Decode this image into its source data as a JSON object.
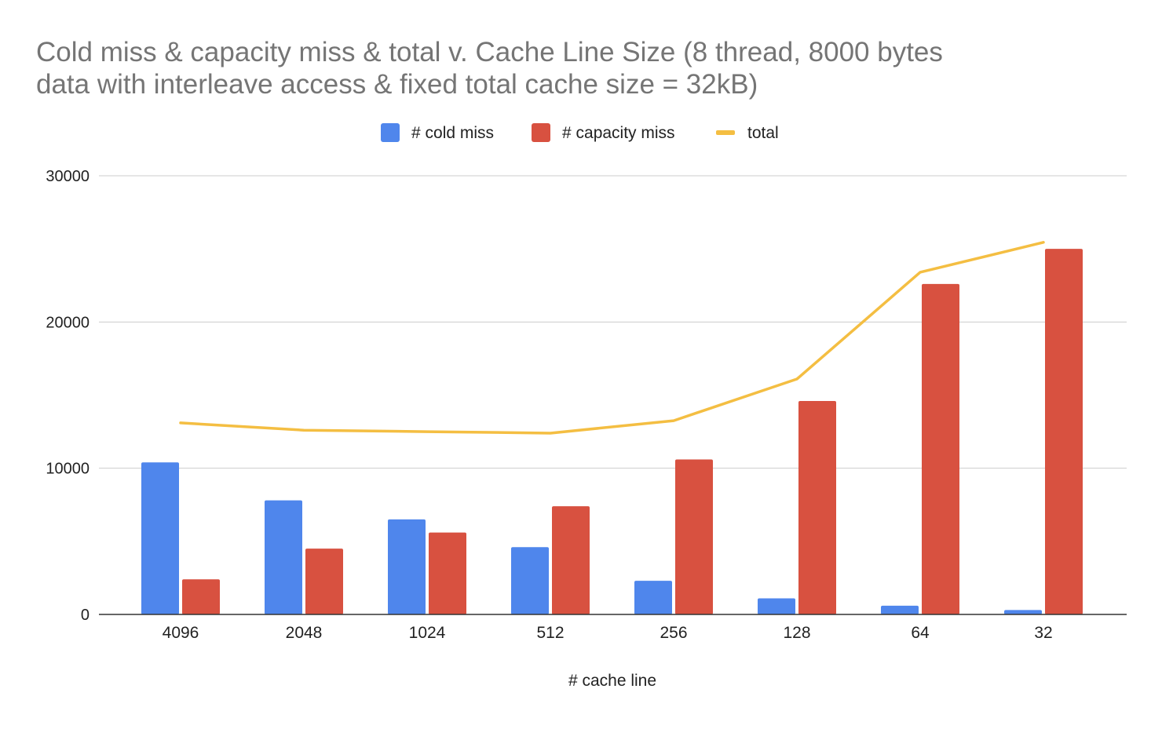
{
  "chart_data": {
    "type": "bar",
    "title_lines": [
      "Cold miss & capacity miss & total v. Cache Line Size (8 thread, 8000 bytes",
      "data with interleave access & fixed total cache size = 32kB)"
    ],
    "xlabel": "# cache line",
    "ylabel": "",
    "categories": [
      "4096",
      "2048",
      "1024",
      "512",
      "256",
      "128",
      "64",
      "32"
    ],
    "ylim": [
      0,
      30000
    ],
    "yticks": [
      "0",
      "10000",
      "20000",
      "30000"
    ],
    "grid": true,
    "legend_position": "top-center",
    "series": [
      {
        "name": "# cold miss",
        "kind": "bar",
        "color": "#4f86ec",
        "values": [
          10400,
          7800,
          6500,
          4600,
          2300,
          1100,
          600,
          300
        ]
      },
      {
        "name": "# capacity miss",
        "kind": "bar",
        "color": "#d85140",
        "values": [
          2400,
          4500,
          5600,
          7400,
          10600,
          14600,
          22600,
          25000
        ]
      },
      {
        "name": "total",
        "kind": "line",
        "color": "#f4be42",
        "values": [
          13100,
          12600,
          12500,
          12400,
          13250,
          16100,
          23400,
          25450
        ]
      }
    ],
    "colors": {
      "title": "#757575",
      "axis_text": "#222222",
      "grid": "#cccccc",
      "baseline": "#333333"
    }
  }
}
